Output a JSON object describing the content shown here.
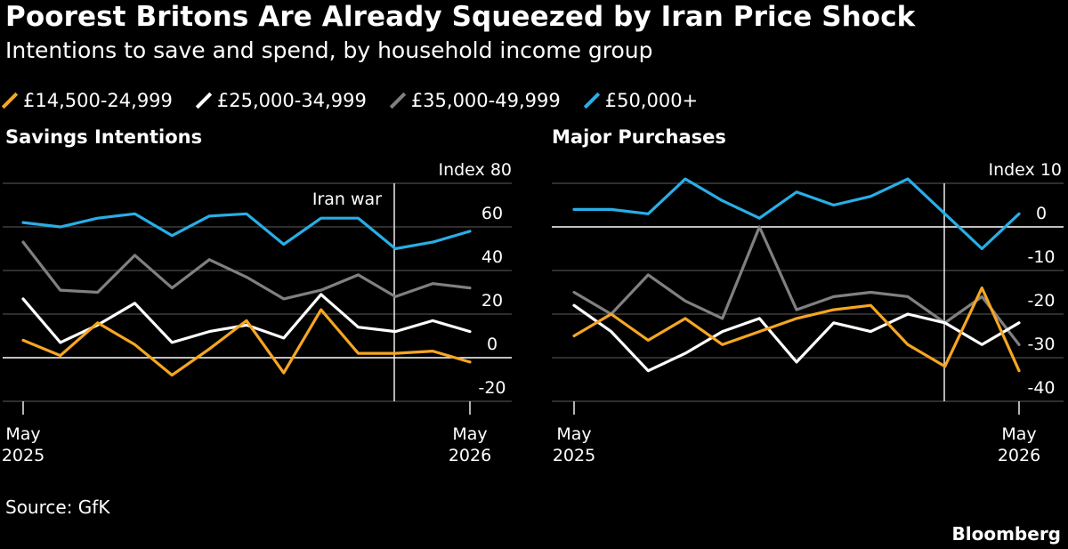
{
  "title": "Poorest Britons Are Already Squeezed by Iran Price Shock",
  "subtitle": "Intentions to save and spend, by household income group",
  "legend": [
    {
      "label": "£14,500-24,999",
      "color": "#f5a623"
    },
    {
      "label": "£25,000-34,999",
      "color": "#ffffff"
    },
    {
      "label": "£35,000-49,999",
      "color": "#808080"
    },
    {
      "label": "£50,000+",
      "color": "#29aee6"
    }
  ],
  "source": "Source: GfK",
  "brand": "Bloomberg",
  "chart_data": [
    {
      "type": "line",
      "title": "Savings Intentions",
      "unit_label": "Index",
      "ylim": [
        -20,
        80
      ],
      "yticks": [
        80,
        60,
        40,
        20,
        0,
        -20
      ],
      "x_tick_labels": [
        {
          "line1": "May",
          "line2": "2025"
        },
        {
          "line1": "May",
          "line2": "2026"
        }
      ],
      "annotation": {
        "text": "Iran war",
        "x_index": 17
      },
      "series": [
        {
          "name": "£14,500-24,999",
          "color": "#f5a623",
          "values": [
            8,
            1,
            16,
            6,
            -8,
            4,
            17,
            -7,
            22,
            2,
            2,
            3,
            -2
          ]
        },
        {
          "name": "£25,000-34,999",
          "color": "#ffffff",
          "values": [
            27,
            7,
            15,
            25,
            7,
            12,
            15,
            9,
            29,
            14,
            12,
            17,
            12
          ]
        },
        {
          "name": "£35,000-49,999",
          "color": "#808080",
          "values": [
            53,
            31,
            30,
            47,
            32,
            45,
            37,
            27,
            31,
            38,
            28,
            34,
            32
          ]
        },
        {
          "name": "£50,000+",
          "color": "#29aee6",
          "values": [
            62,
            60,
            64,
            66,
            56,
            65,
            66,
            52,
            64,
            64,
            50,
            53,
            58
          ]
        }
      ]
    },
    {
      "type": "line",
      "title": "Major Purchases",
      "unit_label": "Index",
      "ylim": [
        -40,
        10
      ],
      "yticks": [
        10,
        0,
        -10,
        -20,
        -30,
        -40
      ],
      "x_tick_labels": [
        {
          "line1": "May",
          "line2": "2025"
        },
        {
          "line1": "May",
          "line2": "2026"
        }
      ],
      "annotation": {
        "text": "",
        "x_index": 17
      },
      "series": [
        {
          "name": "£14,500-24,999",
          "color": "#f5a623",
          "values": [
            -25,
            -20,
            -26,
            -21,
            -27,
            -24,
            -21,
            -19,
            -18,
            -27,
            -32,
            -14,
            -33
          ]
        },
        {
          "name": "£25,000-34,999",
          "color": "#ffffff",
          "values": [
            -18,
            -24,
            -33,
            -29,
            -24,
            -21,
            -31,
            -22,
            -24,
            -20,
            -22,
            -27,
            -22
          ]
        },
        {
          "name": "£35,000-49,999",
          "color": "#808080",
          "values": [
            -15,
            -20,
            -11,
            -17,
            -21,
            0,
            -19,
            -16,
            -15,
            -16,
            -22,
            -16,
            -27
          ]
        },
        {
          "name": "£50,000+",
          "color": "#29aee6",
          "values": [
            4,
            4,
            3,
            11,
            6,
            2,
            8,
            5,
            7,
            11,
            3,
            -5,
            3
          ]
        }
      ]
    }
  ]
}
